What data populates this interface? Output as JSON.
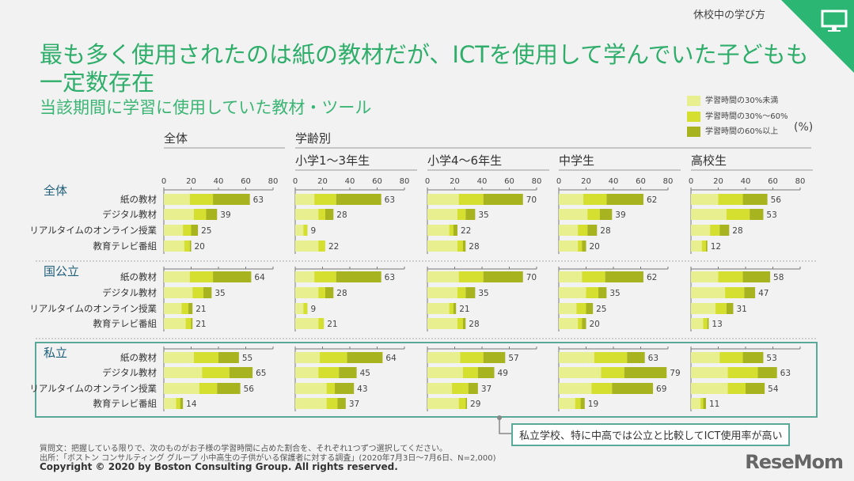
{
  "header": {
    "section": "休校中の学び方",
    "icon": "monitor-icon",
    "title_line1": "最も多く使用されたのは紙の教材だが、ICTを使用して学んでいた子どもも",
    "title_line2": "一定数存在",
    "subtitle": "当該期間に学習に使用していた教材・ツール",
    "accent": "#2bb673"
  },
  "legend": {
    "items": [
      {
        "label": "学習時間の30%未満",
        "color": "#e7ef8f"
      },
      {
        "label": "学習時間の30%～60%",
        "color": "#d5df2f"
      },
      {
        "label": "学習時間の60%以上",
        "color": "#a8b320"
      }
    ],
    "unit": "(%)"
  },
  "column_headers": {
    "overall": "全体",
    "by_grade": "学齢別"
  },
  "chart_data": {
    "type": "bar",
    "stacked": true,
    "orientation": "horizontal",
    "xlim": [
      0,
      80
    ],
    "ticks": [
      "0",
      "20",
      "40",
      "60",
      "80"
    ],
    "unit": "(%)",
    "categories": [
      "紙の教材",
      "デジタル教材",
      "リアルタイムのオンライン授業",
      "教育テレビ番組"
    ],
    "segments": [
      "学習時間の30%未満",
      "学習時間の30%～60%",
      "学習時間の60%以上"
    ],
    "panels": [
      "全体",
      "小学1～3年生",
      "小学4～6年生",
      "中学生",
      "高校生"
    ],
    "groups": [
      {
        "name": "全体",
        "panels": [
          {
            "totals": [
              63,
              39,
              25,
              20
            ],
            "values": [
              [
                19,
                17,
                27
              ],
              [
                22,
                9,
                8
              ],
              [
                14,
                6,
                5
              ],
              [
                15,
                4,
                1
              ]
            ]
          },
          {
            "totals": [
              63,
              28,
              9,
              22
            ],
            "values": [
              [
                14,
                16,
                33
              ],
              [
                17,
                5,
                6
              ],
              [
                6,
                3,
                0
              ],
              [
                17,
                5,
                0
              ]
            ]
          },
          {
            "totals": [
              70,
              35,
              22,
              28
            ],
            "values": [
              [
                23,
                18,
                29
              ],
              [
                22,
                6,
                7
              ],
              [
                16,
                3,
                3
              ],
              [
                22,
                4,
                2
              ]
            ]
          },
          {
            "totals": [
              62,
              39,
              28,
              20
            ],
            "values": [
              [
                18,
                17,
                27
              ],
              [
                21,
                9,
                9
              ],
              [
                14,
                7,
                7
              ],
              [
                14,
                3,
                3
              ]
            ]
          },
          {
            "totals": [
              56,
              53,
              28,
              12
            ],
            "values": [
              [
                20,
                18,
                18
              ],
              [
                26,
                17,
                10
              ],
              [
                14,
                7,
                7
              ],
              [
                8,
                3,
                1
              ]
            ]
          }
        ]
      },
      {
        "name": "国公立",
        "panels": [
          {
            "totals": [
              64,
              35,
              21,
              21
            ],
            "values": [
              [
                19,
                17,
                28
              ],
              [
                21,
                8,
                6
              ],
              [
                13,
                5,
                3
              ],
              [
                16,
                4,
                1
              ]
            ]
          },
          {
            "totals": [
              63,
              28,
              9,
              21
            ],
            "values": [
              [
                14,
                16,
                33
              ],
              [
                17,
                5,
                6
              ],
              [
                6,
                3,
                0
              ],
              [
                17,
                4,
                0
              ]
            ]
          },
          {
            "totals": [
              70,
              35,
              21,
              28
            ],
            "values": [
              [
                23,
                18,
                29
              ],
              [
                22,
                6,
                7
              ],
              [
                16,
                3,
                2
              ],
              [
                22,
                4,
                2
              ]
            ]
          },
          {
            "totals": [
              62,
              35,
              25,
              20
            ],
            "values": [
              [
                17,
                17,
                28
              ],
              [
                20,
                9,
                6
              ],
              [
                13,
                7,
                5
              ],
              [
                14,
                3,
                3
              ]
            ]
          },
          {
            "totals": [
              58,
              47,
              31,
              13
            ],
            "values": [
              [
                20,
                18,
                20
              ],
              [
                25,
                14,
                8
              ],
              [
                18,
                8,
                5
              ],
              [
                9,
                3,
                1
              ]
            ]
          }
        ]
      },
      {
        "name": "私立",
        "panels": [
          {
            "totals": [
              55,
              65,
              56,
              14
            ],
            "values": [
              [
                22,
                18,
                15
              ],
              [
                28,
                20,
                17
              ],
              [
                26,
                13,
                17
              ],
              [
                9,
                3,
                2
              ]
            ]
          },
          {
            "totals": [
              64,
              45,
              43,
              37
            ],
            "values": [
              [
                18,
                20,
                26
              ],
              [
                17,
                15,
                13
              ],
              [
                23,
                6,
                14
              ],
              [
                23,
                8,
                6
              ]
            ]
          },
          {
            "totals": [
              57,
              49,
              37,
              29
            ],
            "values": [
              [
                24,
                17,
                16
              ],
              [
                26,
                11,
                12
              ],
              [
                18,
                12,
                7
              ],
              [
                23,
                5,
                1
              ]
            ]
          },
          {
            "totals": [
              63,
              79,
              69,
              19
            ],
            "values": [
              [
                26,
                24,
                13
              ],
              [
                31,
                17,
                31
              ],
              [
                24,
                15,
                30
              ],
              [
                12,
                4,
                3
              ]
            ]
          },
          {
            "totals": [
              53,
              63,
              54,
              11
            ],
            "values": [
              [
                21,
                17,
                15
              ],
              [
                27,
                22,
                14
              ],
              [
                27,
                13,
                14
              ],
              [
                7,
                2,
                2
              ]
            ]
          }
        ]
      }
    ]
  },
  "callout": "私立学校、特に中高では公立と比較してICT使用率が高い",
  "footer": {
    "question": "質問文：把握している限りで、次のものがお子様の学習時間に占めた割合を、それぞれ1つずつ選択してください。",
    "source": "出所：「ボストン コンサルティング グループ 小中高生の子供がいる保護者に対する調査」(2020年7月3日～7月6日、N=2,000)",
    "copyright": "Copyright © 2020 by Boston Consulting Group. All rights reserved.",
    "logo": "ReseMom"
  }
}
